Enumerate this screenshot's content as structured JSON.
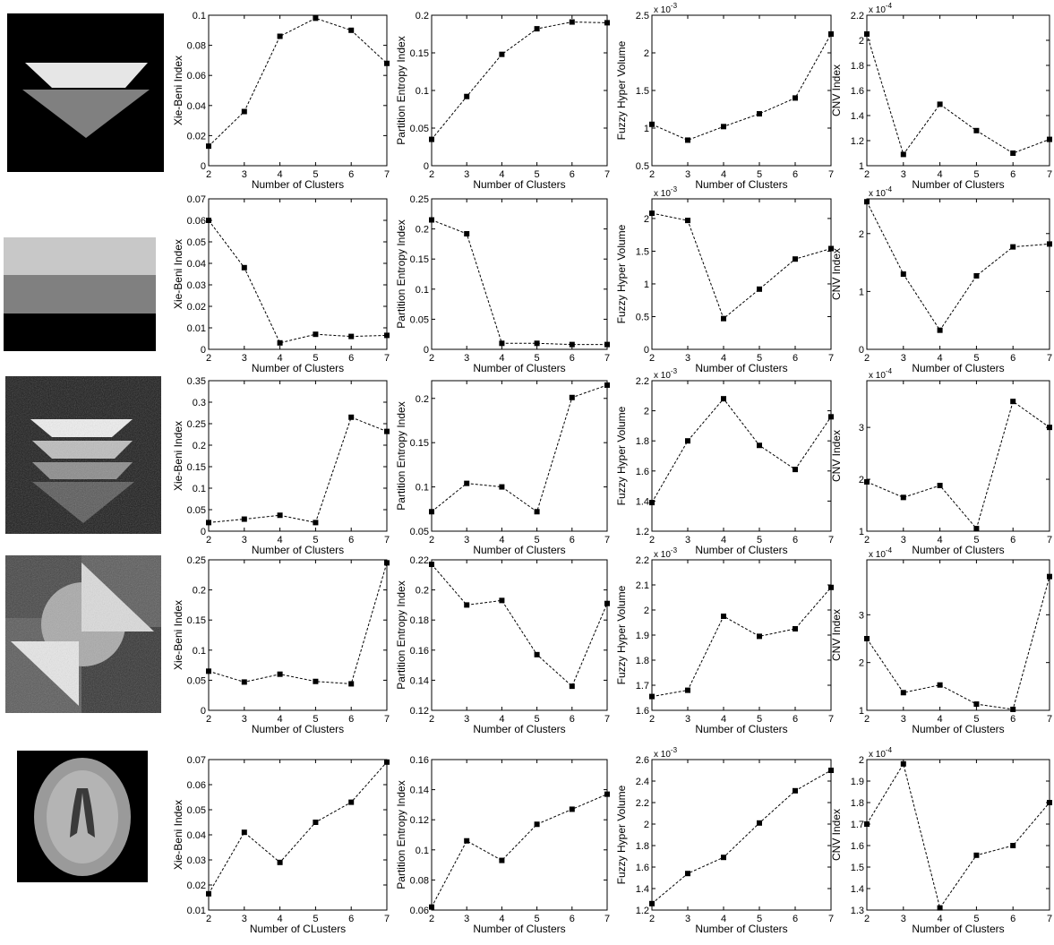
{
  "chart_data": [
    {
      "type": "line",
      "color": "#000000",
      "ylabel": "Xie-Beni Index",
      "xlabel": "Number of Clusters",
      "x": [
        2,
        3,
        4,
        5,
        6,
        7
      ],
      "values": [
        0.013,
        0.036,
        0.086,
        0.098,
        0.09,
        0.068
      ],
      "xlim": [
        2,
        7
      ],
      "xticks": [
        2,
        3,
        4,
        5,
        6,
        7
      ],
      "ylim": [
        0,
        0.1
      ],
      "yticks": [
        0,
        0.02,
        0.04,
        0.06,
        0.08,
        0.1
      ]
    },
    {
      "type": "line",
      "color": "#000000",
      "ylabel": "Partition Entropy Index",
      "xlabel": "Number of Clusters",
      "x": [
        2,
        3,
        4,
        5,
        6,
        7
      ],
      "values": [
        0.035,
        0.092,
        0.148,
        0.182,
        0.191,
        0.19
      ],
      "xlim": [
        2,
        7
      ],
      "xticks": [
        2,
        3,
        4,
        5,
        6,
        7
      ],
      "ylim": [
        0,
        0.2
      ],
      "yticks": [
        0,
        0.05,
        0.1,
        0.15,
        0.2
      ]
    },
    {
      "type": "line",
      "color": "#000000",
      "ylabel": "Fuzzy Hyper Volume",
      "xlabel": "Number of Clusters",
      "x": [
        2,
        3,
        4,
        5,
        6,
        7
      ],
      "values": [
        1.05,
        0.84,
        1.02,
        1.19,
        1.4,
        2.25
      ],
      "xlim": [
        2,
        7
      ],
      "xticks": [
        2,
        3,
        4,
        5,
        6,
        7
      ],
      "ylim": [
        0.5,
        2.5
      ],
      "yticks": [
        0.5,
        1,
        1.5,
        2,
        2.5
      ],
      "y_multiplier": {
        "base": "x 10",
        "exponent": "-3"
      }
    },
    {
      "type": "line",
      "color": "#000000",
      "ylabel": "CNV Index",
      "xlabel": "Number of Clusters",
      "x": [
        2,
        3,
        4,
        5,
        6,
        7
      ],
      "values": [
        2.05,
        1.09,
        1.49,
        1.28,
        1.1,
        1.21
      ],
      "xlim": [
        2,
        7
      ],
      "xticks": [
        2,
        3,
        4,
        5,
        6,
        7
      ],
      "ylim": [
        1,
        2.2
      ],
      "yticks": [
        1,
        1.2,
        1.4,
        1.6,
        1.8,
        2,
        2.2
      ],
      "y_multiplier": {
        "base": "x 10",
        "exponent": "-4"
      }
    },
    {
      "type": "line",
      "color": "#000000",
      "ylabel": "Xie-Beni Index",
      "xlabel": "Number of Clusters",
      "x": [
        2,
        3,
        4,
        5,
        6,
        7
      ],
      "values": [
        0.06,
        0.038,
        0.003,
        0.007,
        0.006,
        0.0065
      ],
      "xlim": [
        2,
        7
      ],
      "xticks": [
        2,
        3,
        4,
        5,
        6,
        7
      ],
      "ylim": [
        0,
        0.07
      ],
      "yticks": [
        0,
        0.01,
        0.02,
        0.03,
        0.04,
        0.05,
        0.06,
        0.07
      ]
    },
    {
      "type": "line",
      "color": "#000000",
      "ylabel": "Partition Entropy Index",
      "xlabel": "Number of Clusters",
      "x": [
        2,
        3,
        4,
        5,
        6,
        7
      ],
      "values": [
        0.215,
        0.192,
        0.01,
        0.01,
        0.008,
        0.008
      ],
      "xlim": [
        2,
        7
      ],
      "xticks": [
        2,
        3,
        4,
        5,
        6,
        7
      ],
      "ylim": [
        0,
        0.25
      ],
      "yticks": [
        0,
        0.05,
        0.1,
        0.15,
        0.2,
        0.25
      ]
    },
    {
      "type": "line",
      "color": "#000000",
      "ylabel": "Fuzzy Hyper Volume",
      "xlabel": "Number of Clusters",
      "x": [
        2,
        3,
        4,
        5,
        6,
        7
      ],
      "values": [
        2.08,
        1.97,
        0.47,
        0.92,
        1.38,
        1.54
      ],
      "xlim": [
        2,
        7
      ],
      "xticks": [
        2,
        3,
        4,
        5,
        6,
        7
      ],
      "ylim": [
        0,
        2.3
      ],
      "yticks": [
        0,
        0.5,
        1,
        1.5,
        2
      ],
      "y_multiplier": {
        "base": "x 10",
        "exponent": "-3"
      }
    },
    {
      "type": "line",
      "color": "#000000",
      "ylabel": "CNV Index",
      "xlabel": "Number of Clusters",
      "x": [
        2,
        3,
        4,
        5,
        6,
        7
      ],
      "values": [
        2.55,
        1.3,
        0.33,
        1.27,
        1.77,
        1.82
      ],
      "xlim": [
        2,
        7
      ],
      "xticks": [
        2,
        3,
        4,
        5,
        6,
        7
      ],
      "ylim": [
        0,
        2.6
      ],
      "yticks": [
        0,
        1,
        2
      ],
      "y_multiplier": {
        "base": "x 10",
        "exponent": "-4"
      }
    },
    {
      "type": "line",
      "color": "#000000",
      "ylabel": "Xie-Beni Index",
      "xlabel": "Number of Clusters",
      "x": [
        2,
        3,
        4,
        5,
        6,
        7
      ],
      "values": [
        0.02,
        0.028,
        0.037,
        0.02,
        0.265,
        0.232
      ],
      "xlim": [
        2,
        7
      ],
      "xticks": [
        2,
        3,
        4,
        5,
        6,
        7
      ],
      "ylim": [
        0,
        0.35
      ],
      "yticks": [
        0,
        0.05,
        0.1,
        0.15,
        0.2,
        0.25,
        0.3,
        0.35
      ]
    },
    {
      "type": "line",
      "color": "#000000",
      "ylabel": "Partition Entropy Index",
      "xlabel": "Number of Clusters",
      "x": [
        2,
        3,
        4,
        5,
        6,
        7
      ],
      "values": [
        0.072,
        0.104,
        0.1,
        0.072,
        0.201,
        0.215
      ],
      "xlim": [
        2,
        7
      ],
      "xticks": [
        2,
        3,
        4,
        5,
        6,
        7
      ],
      "ylim": [
        0.05,
        0.22
      ],
      "yticks": [
        0.05,
        0.1,
        0.15,
        0.2
      ]
    },
    {
      "type": "line",
      "color": "#000000",
      "ylabel": "Fuzzy Hyper Volume",
      "xlabel": "Number of Clusters",
      "x": [
        2,
        3,
        4,
        5,
        6,
        7
      ],
      "values": [
        1.39,
        1.8,
        2.08,
        1.77,
        1.61,
        1.96
      ],
      "xlim": [
        2,
        7
      ],
      "xticks": [
        2,
        3,
        4,
        5,
        6,
        7
      ],
      "ylim": [
        1.2,
        2.2
      ],
      "yticks": [
        1.2,
        1.4,
        1.6,
        1.8,
        2,
        2.2
      ],
      "y_multiplier": {
        "base": "x 10",
        "exponent": "-3"
      }
    },
    {
      "type": "line",
      "color": "#000000",
      "ylabel": "CNV Index",
      "xlabel": "Number of Clusters",
      "x": [
        2,
        3,
        4,
        5,
        6,
        7
      ],
      "values": [
        1.95,
        1.65,
        1.88,
        1.05,
        3.5,
        3.0
      ],
      "xlim": [
        2,
        7
      ],
      "xticks": [
        2,
        3,
        4,
        5,
        6,
        7
      ],
      "ylim": [
        1,
        3.9
      ],
      "yticks": [
        1,
        2,
        3
      ],
      "y_multiplier": {
        "base": "x 10",
        "exponent": "-4"
      }
    },
    {
      "type": "line",
      "color": "#000000",
      "ylabel": "Xie-Beni Index",
      "xlabel": "Number of Clusters",
      "x": [
        2,
        3,
        4,
        5,
        6,
        7
      ],
      "values": [
        0.065,
        0.047,
        0.06,
        0.048,
        0.044,
        0.245
      ],
      "xlim": [
        2,
        7
      ],
      "xticks": [
        2,
        3,
        4,
        5,
        6,
        7
      ],
      "ylim": [
        0,
        0.25
      ],
      "yticks": [
        0,
        0.05,
        0.1,
        0.15,
        0.2,
        0.25
      ]
    },
    {
      "type": "line",
      "color": "#000000",
      "ylabel": "Partition Entropy Index",
      "xlabel": "Number of Clusters",
      "x": [
        2,
        3,
        4,
        5,
        6,
        7
      ],
      "values": [
        0.217,
        0.19,
        0.193,
        0.157,
        0.136,
        0.191
      ],
      "xlim": [
        2,
        7
      ],
      "xticks": [
        2,
        3,
        4,
        5,
        6,
        7
      ],
      "ylim": [
        0.12,
        0.22
      ],
      "yticks": [
        0.12,
        0.14,
        0.16,
        0.18,
        0.2,
        0.22
      ]
    },
    {
      "type": "line",
      "color": "#000000",
      "ylabel": "Fuzzy Hyper Volume",
      "xlabel": "Number of Clusters",
      "x": [
        2,
        3,
        4,
        5,
        6,
        7
      ],
      "values": [
        1.655,
        1.68,
        1.975,
        1.895,
        1.925,
        2.09
      ],
      "xlim": [
        2,
        7
      ],
      "xticks": [
        2,
        3,
        4,
        5,
        6,
        7
      ],
      "ylim": [
        1.6,
        2.2
      ],
      "yticks": [
        1.6,
        1.7,
        1.8,
        1.9,
        2,
        2.1,
        2.2
      ],
      "y_multiplier": {
        "base": "x 10",
        "exponent": "-3"
      }
    },
    {
      "type": "line",
      "color": "#000000",
      "ylabel": "CNV Index",
      "xlabel": "Number of Clusters",
      "x": [
        2,
        3,
        4,
        5,
        6,
        7
      ],
      "values": [
        2.5,
        1.37,
        1.53,
        1.13,
        1.02,
        3.8
      ],
      "xlim": [
        2,
        7
      ],
      "xticks": [
        2,
        3,
        4,
        5,
        6,
        7
      ],
      "ylim": [
        1,
        4.15
      ],
      "yticks": [
        1,
        2,
        3
      ],
      "y_multiplier": {
        "base": "x 10",
        "exponent": "-4"
      }
    },
    {
      "type": "line",
      "color": "#000000",
      "ylabel": "Xie-Beni Index",
      "xlabel": "Number of CLusters",
      "x": [
        2,
        3,
        4,
        5,
        6,
        7
      ],
      "values": [
        0.0165,
        0.041,
        0.029,
        0.045,
        0.053,
        0.069
      ],
      "xlim": [
        2,
        7
      ],
      "xticks": [
        2,
        3,
        4,
        5,
        6,
        7
      ],
      "ylim": [
        0.01,
        0.07
      ],
      "yticks": [
        0.01,
        0.02,
        0.03,
        0.04,
        0.05,
        0.06,
        0.07
      ]
    },
    {
      "type": "line",
      "color": "#000000",
      "ylabel": "Partition Entropy Index",
      "xlabel": "Number of Clusters",
      "x": [
        2,
        3,
        4,
        5,
        6,
        7
      ],
      "values": [
        0.062,
        0.106,
        0.093,
        0.117,
        0.127,
        0.137
      ],
      "xlim": [
        2,
        7
      ],
      "xticks": [
        2,
        3,
        4,
        5,
        6,
        7
      ],
      "ylim": [
        0.06,
        0.16
      ],
      "yticks": [
        0.06,
        0.08,
        0.1,
        0.12,
        0.14,
        0.16
      ]
    },
    {
      "type": "line",
      "color": "#000000",
      "ylabel": "Fuzzy Hyper Volume",
      "xlabel": "Number of Clusters",
      "x": [
        2,
        3,
        4,
        5,
        6,
        7
      ],
      "values": [
        1.26,
        1.54,
        1.69,
        2.01,
        2.31,
        2.5
      ],
      "xlim": [
        2,
        7
      ],
      "xticks": [
        2,
        3,
        4,
        5,
        6,
        7
      ],
      "ylim": [
        1.2,
        2.6
      ],
      "yticks": [
        1.2,
        1.4,
        1.6,
        1.8,
        2,
        2.2,
        2.4,
        2.6
      ],
      "y_multiplier": {
        "base": "x 10",
        "exponent": "-3"
      }
    },
    {
      "type": "line",
      "color": "#000000",
      "ylabel": "CNV Index",
      "xlabel": "Number of Clusters",
      "x": [
        2,
        3,
        4,
        5,
        6,
        7
      ],
      "values": [
        1.7,
        1.98,
        1.31,
        1.555,
        1.6,
        1.8
      ],
      "xlim": [
        2,
        7
      ],
      "xticks": [
        2,
        3,
        4,
        5,
        6,
        7
      ],
      "ylim": [
        1.3,
        2
      ],
      "yticks": [
        1.3,
        1.4,
        1.5,
        1.6,
        1.7,
        1.8,
        1.9,
        2
      ],
      "y_multiplier": {
        "base": "x 10",
        "exponent": "-4"
      }
    }
  ]
}
